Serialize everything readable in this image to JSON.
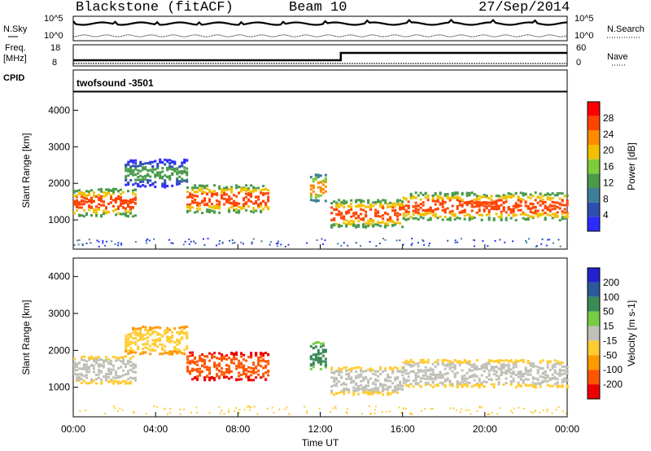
{
  "header": {
    "station": "Blackstone (fitACF)",
    "beam": "Beam 10",
    "date": "27/Sep/2014"
  },
  "side_labels": {
    "nsky": "N.Sky",
    "nsearch": "N.Search",
    "freq": "Freq.",
    "freq_unit": "[MHz]",
    "nave": "Nave",
    "cpid": "CPID",
    "cpid_value": "twofsound -3501"
  },
  "noise_ticks": [
    "10^5",
    "10^0"
  ],
  "freq_ticks": [
    "18",
    "8"
  ],
  "nave_ticks": [
    "60",
    "0"
  ],
  "colors": {
    "power": [
      "#2b2bff",
      "#2f4fb0",
      "#3e7e98",
      "#4a9a4a",
      "#7fcc3a",
      "#f0c000",
      "#ff8a00",
      "#ff4400",
      "#ff0000"
    ],
    "velocity": [
      "#2222cc",
      "#2a5a9a",
      "#3a8a55",
      "#77cc44",
      "#c0c0b8",
      "#ffcc33",
      "#ff9900",
      "#ff5500",
      "#ee0000"
    ]
  },
  "chart_data": [
    {
      "type": "heatmap",
      "name": "power",
      "ylabel": "Slant Range [km]",
      "xlabel": "Time UT",
      "xlim": [
        0,
        24
      ],
      "ylim": [
        200,
        4500
      ],
      "x_ticks": [
        "00:00",
        "04:00",
        "08:00",
        "12:00",
        "16:00",
        "20:00",
        "00:00"
      ],
      "y_ticks": [
        1000,
        2000,
        3000,
        4000
      ],
      "colorbar": {
        "label": "Power [dB]",
        "ticks": [
          "28",
          "24",
          "20",
          "16",
          "12",
          "8",
          "4"
        ]
      },
      "echo_bands": [
        {
          "t_start": 0.0,
          "t_end": 3.0,
          "range_km": 1500,
          "power_db": 25
        },
        {
          "t_start": 2.5,
          "t_end": 5.5,
          "range_km": 2300,
          "power_db": 14
        },
        {
          "t_start": 5.5,
          "t_end": 9.5,
          "range_km": 1600,
          "power_db": 26
        },
        {
          "t_start": 11.5,
          "t_end": 12.3,
          "range_km": 1900,
          "power_db": 22
        },
        {
          "t_start": 12.5,
          "t_end": 16.0,
          "range_km": 1200,
          "power_db": 25
        },
        {
          "t_start": 16.0,
          "t_end": 24.0,
          "range_km": 1400,
          "power_db": 26
        }
      ]
    },
    {
      "type": "heatmap",
      "name": "velocity",
      "ylabel": "Slant Range [km]",
      "xlabel": "Time UT",
      "xlim": [
        0,
        24
      ],
      "ylim": [
        200,
        4500
      ],
      "x_ticks": [
        "00:00",
        "04:00",
        "08:00",
        "12:00",
        "16:00",
        "20:00",
        "00:00"
      ],
      "y_ticks": [
        1000,
        2000,
        3000,
        4000
      ],
      "colorbar": {
        "label": "Velocity [m s-1]",
        "ticks": [
          "200",
          "100",
          "50",
          "15",
          "-15",
          "-50",
          "-100",
          "-200"
        ]
      },
      "echo_bands": [
        {
          "t_start": 0.0,
          "t_end": 3.0,
          "range_km": 1500,
          "velocity_ms": -5
        },
        {
          "t_start": 2.5,
          "t_end": 5.5,
          "range_km": 2300,
          "velocity_ms": -40
        },
        {
          "t_start": 5.5,
          "t_end": 9.5,
          "range_km": 1600,
          "velocity_ms": -120
        },
        {
          "t_start": 11.5,
          "t_end": 12.3,
          "range_km": 1900,
          "velocity_ms": 60
        },
        {
          "t_start": 12.5,
          "t_end": 16.0,
          "range_km": 1200,
          "velocity_ms": 0
        },
        {
          "t_start": 16.0,
          "t_end": 24.0,
          "range_km": 1400,
          "velocity_ms": 0
        }
      ]
    }
  ]
}
